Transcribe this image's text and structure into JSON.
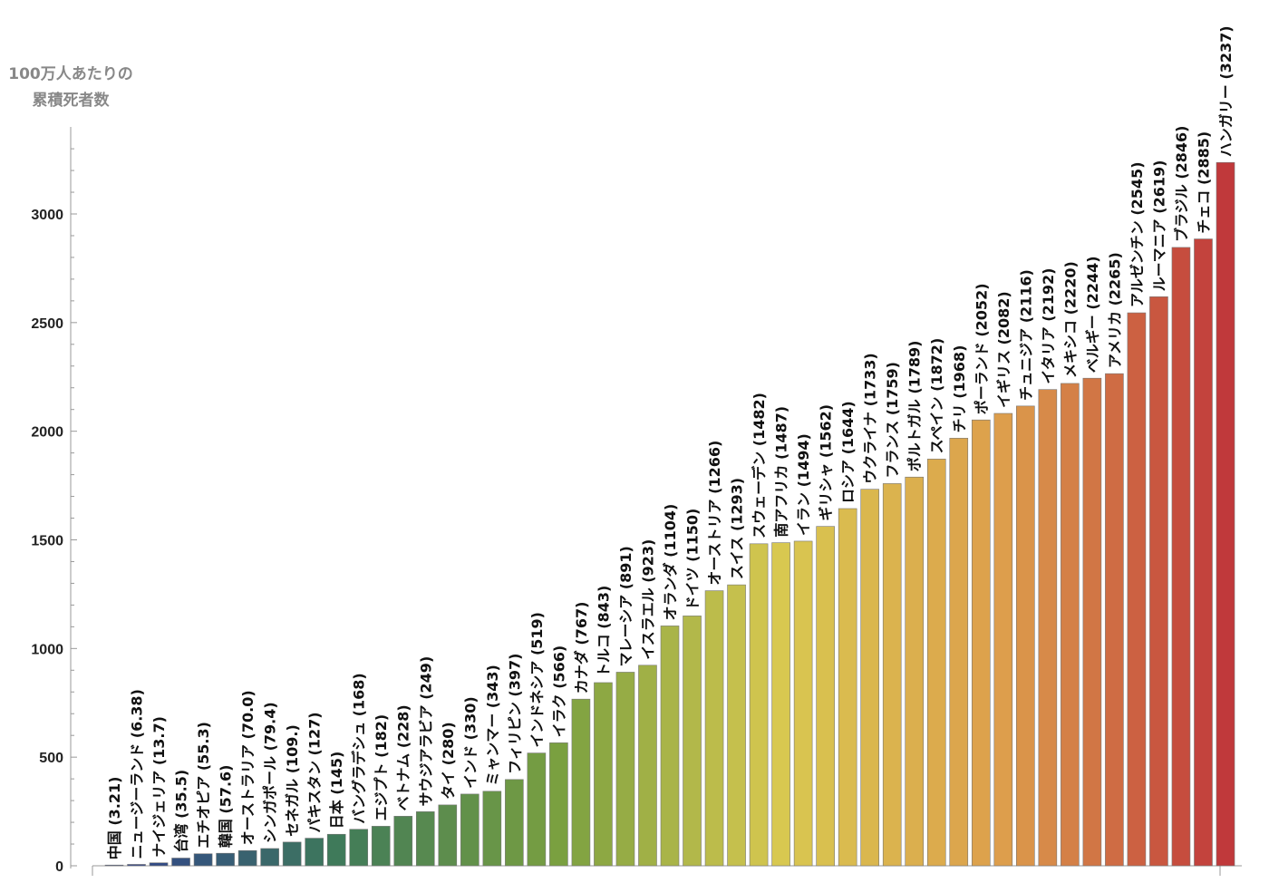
{
  "chart_data": {
    "type": "bar",
    "ylabel": [
      "100万人あたりの",
      "累積死者数"
    ],
    "ylim": [
      0,
      3400
    ],
    "yticks": [
      0,
      500,
      1000,
      1500,
      2000,
      2500,
      3000
    ],
    "ytick_labels": [
      "0",
      "500",
      "1000",
      "1500",
      "2000",
      "2500",
      "3000"
    ],
    "grid": false,
    "color_scale": [
      "#2f3f8f",
      "#3f7a5a",
      "#7aa040",
      "#d8c850",
      "#dd9e4c",
      "#c0393b"
    ],
    "bars": [
      {
        "category": "中国",
        "value": 3.21,
        "label": "中国  (3.21)"
      },
      {
        "category": "ニュージーランド",
        "value": 6.38,
        "label": "ニュージーランド  (6.38)"
      },
      {
        "category": "ナイジェリア",
        "value": 13.7,
        "label": "ナイジェリア  (13.7)"
      },
      {
        "category": "台湾",
        "value": 35.5,
        "label": "台湾  (35.5)"
      },
      {
        "category": "エチオピア",
        "value": 55.3,
        "label": "エチオピア  (55.3)"
      },
      {
        "category": "韓国",
        "value": 57.6,
        "label": "韓国  (57.6)"
      },
      {
        "category": "オーストラリア",
        "value": 70.0,
        "label": "オーストラリア  (70.0)"
      },
      {
        "category": "シンガポール",
        "value": 79.4,
        "label": "シンガポール  (79.4)"
      },
      {
        "category": "セネガル",
        "value": 109,
        "label": "セネガル  (109.)"
      },
      {
        "category": "パキスタン",
        "value": 127,
        "label": "パキスタン  (127)"
      },
      {
        "category": "日本",
        "value": 145,
        "label": "日本  (145)"
      },
      {
        "category": "バングラデシュ",
        "value": 168,
        "label": "バングラデシュ  (168)"
      },
      {
        "category": "エジプト",
        "value": 182,
        "label": "エジプト  (182)"
      },
      {
        "category": "ベトナム",
        "value": 228,
        "label": "ベトナム  (228)"
      },
      {
        "category": "サウジアラビア",
        "value": 249,
        "label": "サウジアラビア  (249)"
      },
      {
        "category": "タイ",
        "value": 280,
        "label": "タイ  (280)"
      },
      {
        "category": "インド",
        "value": 330,
        "label": "インド  (330)"
      },
      {
        "category": "ミャンマー",
        "value": 343,
        "label": "ミャンマー  (343)"
      },
      {
        "category": "フィリピン",
        "value": 397,
        "label": "フィリピン  (397)"
      },
      {
        "category": "インドネシア",
        "value": 519,
        "label": "インドネシア  (519)"
      },
      {
        "category": "イラク",
        "value": 566,
        "label": "イラク  (566)"
      },
      {
        "category": "カナダ",
        "value": 767,
        "label": "カナダ  (767)"
      },
      {
        "category": "トルコ",
        "value": 843,
        "label": "トルコ  (843)"
      },
      {
        "category": "マレーシア",
        "value": 891,
        "label": "マレーシア  (891)"
      },
      {
        "category": "イスラエル",
        "value": 923,
        "label": "イスラエル  (923)"
      },
      {
        "category": "オランダ",
        "value": 1104,
        "label": "オランダ  (1104)"
      },
      {
        "category": "ドイツ",
        "value": 1150,
        "label": "ドイツ  (1150)"
      },
      {
        "category": "オーストリア",
        "value": 1266,
        "label": "オーストリア  (1266)"
      },
      {
        "category": "スイス",
        "value": 1293,
        "label": "スイス  (1293)"
      },
      {
        "category": "スウェーデン",
        "value": 1482,
        "label": "スウェーデン  (1482)"
      },
      {
        "category": "南アフリカ",
        "value": 1487,
        "label": "南アフリカ  (1487)"
      },
      {
        "category": "イラン",
        "value": 1494,
        "label": "イラン  (1494)"
      },
      {
        "category": "ギリシャ",
        "value": 1562,
        "label": "ギリシャ  (1562)"
      },
      {
        "category": "ロシア",
        "value": 1644,
        "label": "ロシア  (1644)"
      },
      {
        "category": "ウクライナ",
        "value": 1733,
        "label": "ウクライナ  (1733)"
      },
      {
        "category": "フランス",
        "value": 1759,
        "label": "フランス  (1759)"
      },
      {
        "category": "ポルトガル",
        "value": 1789,
        "label": "ポルトガル  (1789)"
      },
      {
        "category": "スペイン",
        "value": 1872,
        "label": "スペイン  (1872)"
      },
      {
        "category": "チリ",
        "value": 1968,
        "label": "チリ  (1968)"
      },
      {
        "category": "ポーランド",
        "value": 2052,
        "label": "ポーランド  (2052)"
      },
      {
        "category": "イギリス",
        "value": 2082,
        "label": "イギリス  (2082)"
      },
      {
        "category": "チュニジア",
        "value": 2116,
        "label": "チュニジア  (2116)"
      },
      {
        "category": "イタリア",
        "value": 2192,
        "label": "イタリア  (2192)"
      },
      {
        "category": "メキシコ",
        "value": 2220,
        "label": "メキシコ  (2220)"
      },
      {
        "category": "ベルギー",
        "value": 2244,
        "label": "ベルギー  (2244)"
      },
      {
        "category": "アメリカ",
        "value": 2265,
        "label": "アメリカ  (2265)"
      },
      {
        "category": "アルゼンチン",
        "value": 2545,
        "label": "アルゼンチン  (2545)"
      },
      {
        "category": "ルーマニア",
        "value": 2619,
        "label": "ルーマニア  (2619)"
      },
      {
        "category": "ブラジル",
        "value": 2846,
        "label": "ブラジル  (2846)"
      },
      {
        "category": "チェコ",
        "value": 2885,
        "label": "チェコ  (2885)"
      },
      {
        "category": "ハンガリー",
        "value": 3237,
        "label": "ハンガリー  (3237)"
      }
    ]
  }
}
